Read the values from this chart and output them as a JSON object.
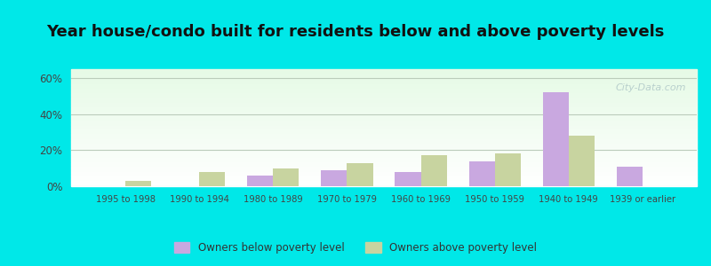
{
  "title": "Year house/condo built for residents below and above poverty levels",
  "categories": [
    "1995 to 1998",
    "1990 to 1994",
    "1980 to 1989",
    "1970 to 1979",
    "1960 to 1969",
    "1950 to 1959",
    "1940 to 1949",
    "1939 or earlier"
  ],
  "below_poverty": [
    0,
    0,
    6,
    9,
    8,
    14,
    52,
    11
  ],
  "above_poverty": [
    3,
    8,
    10,
    13,
    17,
    18,
    28,
    0
  ],
  "below_color": "#c9a8e0",
  "above_color": "#c8d4a0",
  "title_fontsize": 13,
  "ylabel_ticks": [
    "0%",
    "20%",
    "40%",
    "60%"
  ],
  "yticks": [
    0,
    20,
    40,
    60
  ],
  "ylim": [
    0,
    65
  ],
  "legend_below": "Owners below poverty level",
  "legend_above": "Owners above poverty level",
  "bar_width": 0.35,
  "outer_bg": "#00e8e8",
  "grid_color": "#bbccbb",
  "watermark": "City-Data.com"
}
